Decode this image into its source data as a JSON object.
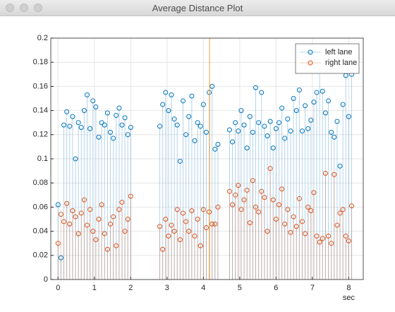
{
  "window": {
    "title": "Average Distance Plot"
  },
  "chart_data": {
    "type": "stem",
    "xlabel": "sec",
    "x": [
      0,
      0.08,
      0.16,
      0.24,
      0.32,
      0.4,
      0.48,
      0.56,
      0.64,
      0.72,
      0.8,
      0.88,
      0.96,
      1.04,
      1.12,
      1.2,
      1.28,
      1.36,
      1.44,
      1.52,
      1.6,
      1.68,
      1.76,
      1.84,
      1.92,
      2.0,
      2.8,
      2.88,
      2.96,
      3.04,
      3.12,
      3.2,
      3.28,
      3.36,
      3.44,
      3.52,
      3.6,
      3.68,
      3.76,
      3.84,
      3.92,
      4.0,
      4.08,
      4.16,
      4.24,
      4.32,
      4.4,
      4.72,
      4.8,
      4.88,
      4.96,
      5.04,
      5.12,
      5.2,
      5.28,
      5.36,
      5.44,
      5.52,
      5.6,
      5.68,
      5.76,
      5.84,
      5.92,
      6.0,
      6.08,
      6.16,
      6.24,
      6.32,
      6.4,
      6.48,
      6.56,
      6.64,
      6.72,
      6.8,
      6.88,
      6.96,
      7.04,
      7.12,
      7.2,
      7.28,
      7.36,
      7.44,
      7.52,
      7.6,
      7.68,
      7.76,
      7.84,
      7.92,
      8.0,
      8.08
    ],
    "series": [
      {
        "name": "left lane",
        "color": "#0072bd",
        "values": [
          0.062,
          0.018,
          0.128,
          0.139,
          0.127,
          0.135,
          0.1,
          0.13,
          0.126,
          0.14,
          0.153,
          0.125,
          0.148,
          0.143,
          0.118,
          0.13,
          0.128,
          0.138,
          0.122,
          0.117,
          0.136,
          0.142,
          0.128,
          0.134,
          0.12,
          0.126,
          0.127,
          0.145,
          0.155,
          0.14,
          0.153,
          0.133,
          0.128,
          0.098,
          0.148,
          0.12,
          0.135,
          0.152,
          0.115,
          0.13,
          0.127,
          0.145,
          0.122,
          0.155,
          0.16,
          0.108,
          0.112,
          0.124,
          0.114,
          0.13,
          0.123,
          0.14,
          0.128,
          0.109,
          0.135,
          0.122,
          0.159,
          0.13,
          0.155,
          0.127,
          0.119,
          0.131,
          0.109,
          0.125,
          0.13,
          0.142,
          0.117,
          0.133,
          0.123,
          0.15,
          0.14,
          0.157,
          0.123,
          0.144,
          0.125,
          0.132,
          0.147,
          0.155,
          0.178,
          0.156,
          0.138,
          0.148,
          0.122,
          0.118,
          0.131,
          0.094,
          0.145,
          0.169,
          0.135,
          0.17
        ]
      },
      {
        "name": "right lane",
        "color": "#d95319",
        "values": [
          0.03,
          0.054,
          0.048,
          0.063,
          0.046,
          0.057,
          0.052,
          0.038,
          0.055,
          0.066,
          0.045,
          0.058,
          0.04,
          0.033,
          0.05,
          0.062,
          0.038,
          0.025,
          0.046,
          0.052,
          0.028,
          0.058,
          0.064,
          0.04,
          0.05,
          0.069,
          0.044,
          0.025,
          0.05,
          0.036,
          0.045,
          0.04,
          0.058,
          0.033,
          0.055,
          0.048,
          0.04,
          0.057,
          0.036,
          0.05,
          0.028,
          0.058,
          0.043,
          0.056,
          0.046,
          0.046,
          0.06,
          0.073,
          0.062,
          0.07,
          0.078,
          0.058,
          0.066,
          0.074,
          0.047,
          0.082,
          0.06,
          0.056,
          0.073,
          0.068,
          0.04,
          0.092,
          0.066,
          0.05,
          0.062,
          0.075,
          0.046,
          0.058,
          0.039,
          0.052,
          0.044,
          0.067,
          0.048,
          0.038,
          0.06,
          0.057,
          0.072,
          0.036,
          0.031,
          0.034,
          0.088,
          0.036,
          0.03,
          0.087,
          0.045,
          0.055,
          0.058,
          0.036,
          0.032,
          0.061
        ]
      }
    ],
    "cursor_x": 4.17,
    "cursor_color": "#f0a030",
    "xlim": [
      -0.2,
      8.4
    ],
    "xticks": [
      0,
      1,
      2,
      3,
      4,
      5,
      6,
      7,
      8
    ],
    "ylim": [
      0,
      0.2
    ],
    "yticks": [
      0,
      0.02,
      0.04,
      0.06,
      0.08,
      0.1,
      0.12,
      0.14,
      0.16,
      0.18,
      0.2
    ],
    "grid": true,
    "legend": "northeast"
  }
}
